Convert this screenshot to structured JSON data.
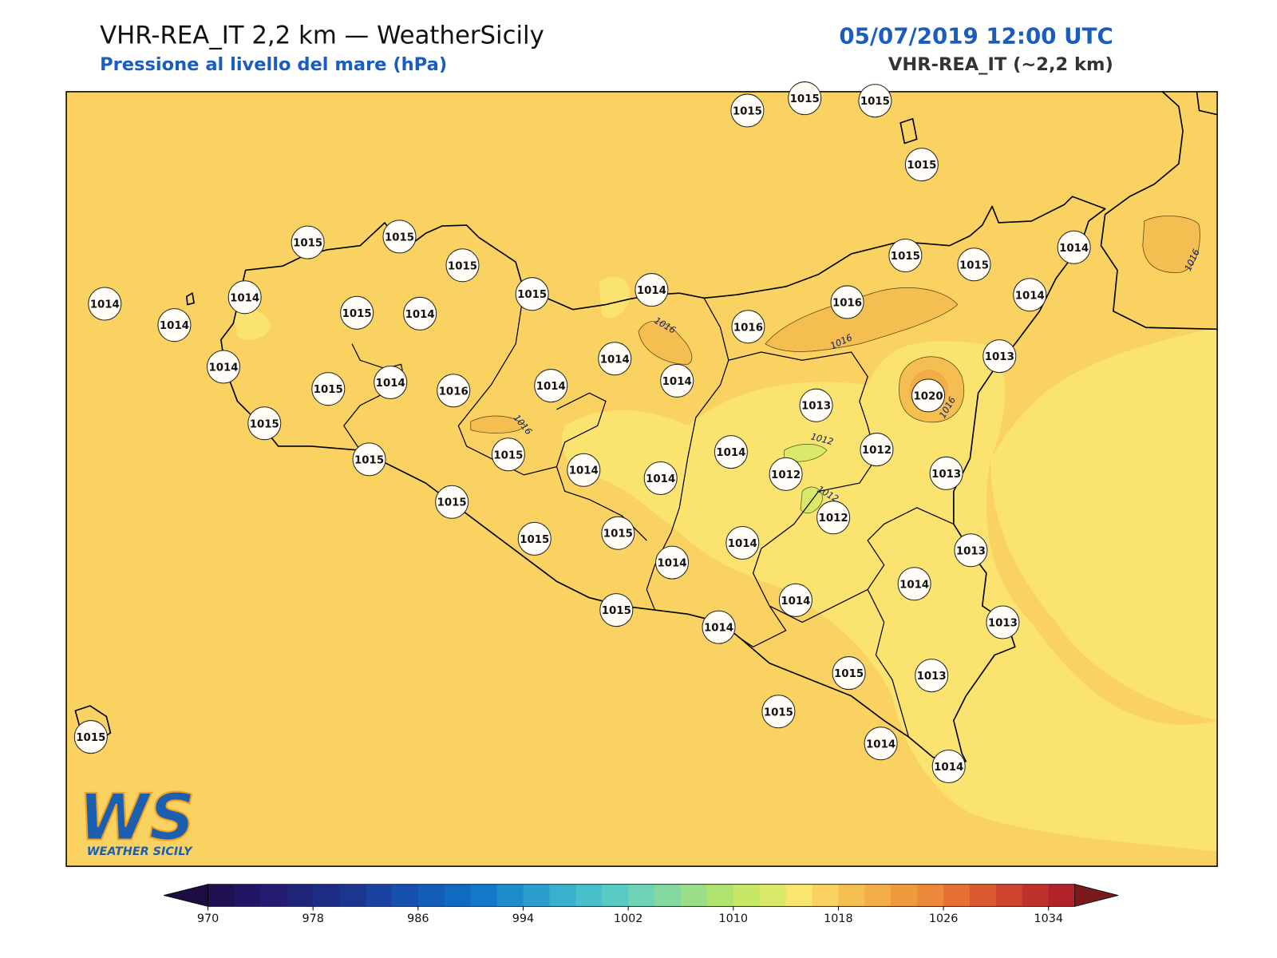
{
  "header": {
    "title": "VHR-REA_IT 2,2 km — WeatherSicily",
    "subtitle": "Pressione al livello del mare (hPa)",
    "date": "05/07/2019 12:00 UTC",
    "model": "VHR-REA_IT (~2,2 km)"
  },
  "stations": [
    1015,
    1015,
    1015,
    1015,
    1015,
    1015,
    1015,
    1015,
    1014,
    1014,
    1014,
    1014,
    1015,
    1014,
    1016,
    1015,
    1015,
    1014,
    1014,
    1016,
    1013,
    1014,
    1014,
    1014,
    1015,
    1014,
    1016,
    1014,
    1013,
    1020,
    1015,
    1014,
    1012,
    1015,
    1015,
    1014,
    1014,
    1012,
    1013,
    1015,
    1012,
    1015,
    1015,
    1014,
    1014,
    1013,
    1014,
    1014,
    1015,
    1014,
    1013,
    1015,
    1013,
    1015,
    1014,
    1014,
    1015
  ],
  "contour_labels": [
    1016,
    1016,
    1016,
    1016,
    1016,
    1012,
    1012
  ],
  "colorbar": {
    "ticks": [
      970,
      978,
      986,
      994,
      1002,
      1010,
      1018,
      1026,
      1034
    ],
    "colors": [
      "#201050",
      "#221563",
      "#231c70",
      "#20257a",
      "#1e2d84",
      "#1c3690",
      "#1a43a0",
      "#1650ad",
      "#135db8",
      "#116ac2",
      "#1279c8",
      "#1e8cca",
      "#2d9dcd",
      "#3ab0cf",
      "#48c0cc",
      "#5acac5",
      "#6fd3b5",
      "#85d9a0",
      "#9ade88",
      "#afe370",
      "#c7e767",
      "#dbe96b",
      "#f9e66e",
      "#f9d262",
      "#f5be50",
      "#f3ad48",
      "#f09a40",
      "#ec8839",
      "#e67034",
      "#db5a30",
      "#cd452d",
      "#bf322b",
      "#b02328"
    ],
    "under_color": "#1c0c42",
    "over_color": "#7a1a1a"
  },
  "logo": {
    "mark": "WS",
    "text": "WEATHER SICILY"
  }
}
